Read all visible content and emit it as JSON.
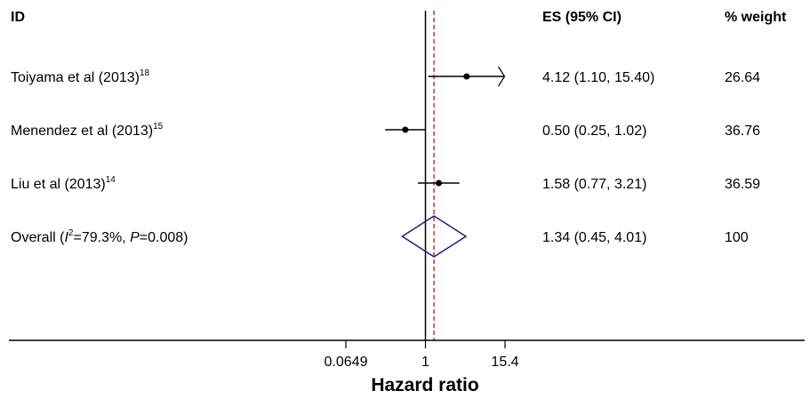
{
  "chart_data": {
    "type": "forest",
    "headers": {
      "id": "ID",
      "es": "ES (95% CI)",
      "weight": "% weight"
    },
    "studies": [
      {
        "label": "Toiyama et al (2013)",
        "ref": "18",
        "es": 4.12,
        "lower": 1.1,
        "upper": 15.4,
        "es_text": "4.12 (1.10, 15.40)",
        "weight": "26.64",
        "arrow_right": true
      },
      {
        "label": "Menendez et al (2013)",
        "ref": "15",
        "es": 0.5,
        "lower": 0.25,
        "upper": 1.02,
        "es_text": "0.50 (0.25, 1.02)",
        "weight": "36.76",
        "arrow_right": false
      },
      {
        "label": "Liu et al (2013)",
        "ref": "14",
        "es": 1.58,
        "lower": 0.77,
        "upper": 3.21,
        "es_text": "1.58 (0.77, 3.21)",
        "weight": "36.59",
        "arrow_right": false
      }
    ],
    "overall": {
      "label_prefix": "Overall (",
      "i_symbol": "I",
      "i_sup": "2",
      "i_value": "=79.3%, ",
      "p_symbol": "P",
      "p_value": "=0.008)",
      "es": 1.34,
      "lower": 0.45,
      "upper": 4.01,
      "es_text": "1.34 (0.45, 4.01)",
      "weight": "100"
    },
    "x_ticks": [
      {
        "value": 0.0649,
        "label": "0.0649"
      },
      {
        "value": 1,
        "label": "1"
      },
      {
        "value": 15.4,
        "label": "15.4"
      }
    ],
    "x_scale": "log",
    "x_range": [
      0.0649,
      15.4
    ],
    "reference_line": 1,
    "xlabel": "Hazard ratio",
    "colors": {
      "diamond": "#1f1f7a",
      "overall_line": "#c0392b",
      "marks": "#000000"
    }
  }
}
